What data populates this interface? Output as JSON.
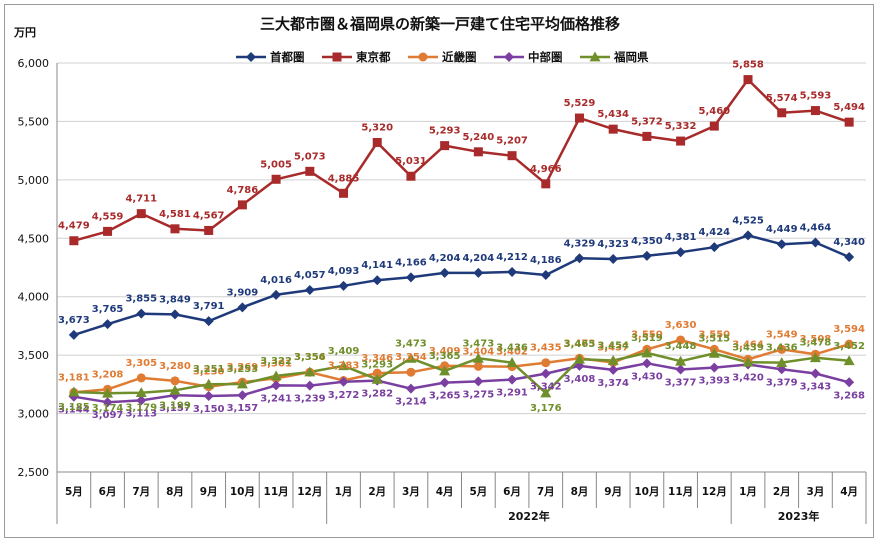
{
  "chart_data": {
    "type": "line",
    "title": "三大都市圏＆福岡県の新築一戸建て住宅平均価格推移",
    "ylabel": "万円",
    "ylim": [
      2500,
      6000
    ],
    "yticks": [
      "2,500",
      "3,000",
      "3,500",
      "4,000",
      "4,500",
      "5,000",
      "5,500",
      "6,000"
    ],
    "ytick_values": [
      2500,
      3000,
      3500,
      4000,
      4500,
      5000,
      5500,
      6000
    ],
    "categories": [
      "5月",
      "6月",
      "7月",
      "8月",
      "9月",
      "10月",
      "11月",
      "12月",
      "1月",
      "2月",
      "3月",
      "4月",
      "5月",
      "6月",
      "7月",
      "8月",
      "9月",
      "10月",
      "11月",
      "12月",
      "1月",
      "2月",
      "3月",
      "4月"
    ],
    "year_labels": [
      {
        "label": "",
        "from": 0,
        "to": 7
      },
      {
        "label": "2022年",
        "from": 8,
        "to": 19
      },
      {
        "label": "2023年",
        "from": 20,
        "to": 23
      }
    ],
    "grid": true,
    "legend_position": "top",
    "series": [
      {
        "name": "首都圏",
        "color": "#1f3a7a",
        "marker": "diamond",
        "values": [
          3673,
          3765,
          3855,
          3849,
          3791,
          3909,
          4016,
          4057,
          4093,
          4141,
          4166,
          4204,
          4204,
          4212,
          4186,
          4329,
          4323,
          4350,
          4381,
          4424,
          4525,
          4449,
          4464,
          4340
        ],
        "labels": [
          "3,673",
          "3,765",
          "3,855",
          "3,849",
          "3,791",
          "3,909",
          "4,016",
          "4,057",
          "4,093",
          "4,141",
          "4,166",
          "4,204",
          "4,204",
          "4,212",
          "4,186",
          "4,329",
          "4,323",
          "4,350",
          "4,381",
          "4,424",
          "4,525",
          "4,449",
          "4,464",
          "4,340"
        ]
      },
      {
        "name": "東京都",
        "color": "#a82a2a",
        "marker": "square",
        "values": [
          4479,
          4559,
          4711,
          4581,
          4567,
          4786,
          5005,
          5073,
          4885,
          5320,
          5031,
          5293,
          5240,
          5207,
          4966,
          5529,
          5434,
          5372,
          5332,
          5460,
          5858,
          5574,
          5593,
          5494
        ],
        "labels": [
          "4,479",
          "4,559",
          "4,711",
          "4,581",
          "4,567",
          "4,786",
          "5,005",
          "5,073",
          "4,885",
          "5,320",
          "5,031",
          "5,293",
          "5,240",
          "5,207",
          "4,966",
          "5,529",
          "5,434",
          "5,372",
          "5,332",
          "5,460",
          "5,858",
          "5,574",
          "5,593",
          "5,494"
        ]
      },
      {
        "name": "近畿圏",
        "color": "#e07b33",
        "marker": "circle",
        "values": [
          3181,
          3208,
          3305,
          3280,
          3230,
          3269,
          3301,
          3354,
          3283,
          3346,
          3354,
          3409,
          3404,
          3402,
          3435,
          3473,
          3437,
          3550,
          3630,
          3550,
          3464,
          3549,
          3508,
          3594
        ],
        "labels": [
          "3,181",
          "3,208",
          "3,305",
          "3,280",
          "3,230",
          "3,269",
          "3,301",
          "3,354",
          "3,283",
          "3,346",
          "3,354",
          "3,409",
          "3,404",
          "3,402",
          "3,435",
          "3,473",
          "3,437",
          "3,550",
          "3,630",
          "3,550",
          "3,464",
          "3,549",
          "3,508",
          "3,594"
        ]
      },
      {
        "name": "中部圏",
        "color": "#7a3fa0",
        "marker": "diamond",
        "values": [
          3144,
          3097,
          3113,
          3157,
          3150,
          3157,
          3241,
          3239,
          3272,
          3282,
          3214,
          3265,
          3275,
          3291,
          3342,
          3408,
          3374,
          3430,
          3377,
          3393,
          3420,
          3379,
          3343,
          3268
        ],
        "labels": [
          "3,144",
          "3,097",
          "3,113",
          "3,157",
          "3,150",
          "3,157",
          "3,241",
          "3,239",
          "3,272",
          "3,282",
          "3,214",
          "3,265",
          "3,275",
          "3,291",
          "3,342",
          "3,408",
          "3,374",
          "3,430",
          "3,377",
          "3,393",
          "3,420",
          "3,379",
          "3,343",
          "3,268"
        ]
      },
      {
        "name": "福岡県",
        "color": "#6f8f2a",
        "marker": "triangle",
        "values": [
          3185,
          3174,
          3179,
          3199,
          3251,
          3253,
          3322,
          3356,
          3409,
          3293,
          3473,
          3365,
          3473,
          3436,
          3176,
          3465,
          3454,
          3519,
          3448,
          3515,
          3439,
          3436,
          3478,
          3452
        ],
        "labels": [
          "3,185",
          "3,174",
          "3,179",
          "3,199",
          "3,251",
          "3,253",
          "3,322",
          "3,356",
          "3,409",
          "3,293",
          "3,473",
          "3,365",
          "3,473",
          "3,436",
          "3,176",
          "3,465",
          "3,454",
          "3,519",
          "3,448",
          "3,515",
          "3,439",
          "3,436",
          "3,478",
          "3,452"
        ]
      }
    ]
  }
}
